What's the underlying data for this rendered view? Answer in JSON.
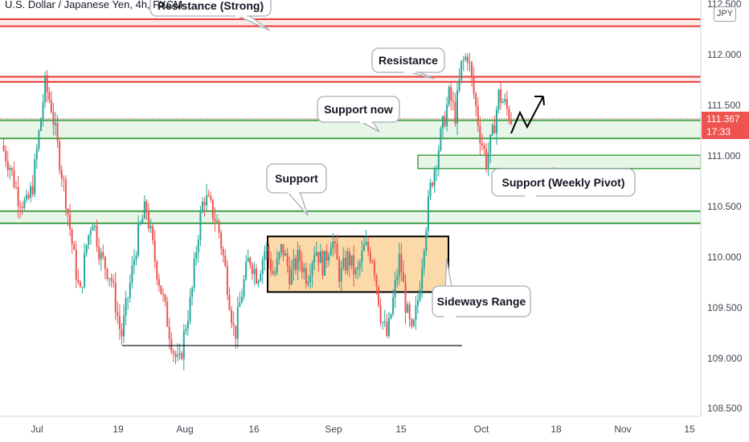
{
  "header": {
    "symbol_title": "U.S. Dollar / Japanese Yen, 4h, FXCM",
    "currency": "JPY"
  },
  "price_tag": {
    "price": "111.367",
    "countdown": "17:33"
  },
  "colors": {
    "up_candle": "#26a69a",
    "down_candle": "#ef5350",
    "resistance": "#e53935",
    "resistance_fill": "#fdecea",
    "support": "#43a047",
    "support_fill": "#e8f5e9",
    "range_fill": "#fcd9a9"
  },
  "chart_data": {
    "type": "candlestick",
    "xlabels": [
      "Jul",
      "19",
      "Aug",
      "16",
      "Sep",
      "15",
      "Oct",
      "18",
      "Nov",
      "15"
    ],
    "ylabels": [
      "112.500",
      "112.000",
      "111.500",
      "111.000",
      "110.500",
      "110.000",
      "109.500",
      "109.000",
      "108.500"
    ],
    "ylim": [
      108.4,
      112.6
    ],
    "price_path": [
      {
        "t": 0,
        "p": 111.1
      },
      {
        "t": 4,
        "p": 110.9
      },
      {
        "t": 8,
        "p": 110.6
      },
      {
        "t": 12,
        "p": 110.5
      },
      {
        "t": 15,
        "p": 110.7
      },
      {
        "t": 18,
        "p": 111.2
      },
      {
        "t": 21,
        "p": 111.7
      },
      {
        "t": 24,
        "p": 111.5
      },
      {
        "t": 27,
        "p": 111.1
      },
      {
        "t": 31,
        "p": 110.6
      },
      {
        "t": 35,
        "p": 110.0
      },
      {
        "t": 38,
        "p": 109.6
      },
      {
        "t": 41,
        "p": 110.1
      },
      {
        "t": 44,
        "p": 110.4
      },
      {
        "t": 48,
        "p": 110.0
      },
      {
        "t": 53,
        "p": 109.8
      },
      {
        "t": 58,
        "p": 109.2
      },
      {
        "t": 62,
        "p": 109.7
      },
      {
        "t": 66,
        "p": 110.2
      },
      {
        "t": 70,
        "p": 110.5
      },
      {
        "t": 74,
        "p": 110.0
      },
      {
        "t": 79,
        "p": 109.5
      },
      {
        "t": 83,
        "p": 109.1
      },
      {
        "t": 86,
        "p": 108.9
      },
      {
        "t": 89,
        "p": 109.3
      },
      {
        "t": 92,
        "p": 109.6
      },
      {
        "t": 95,
        "p": 110.2
      },
      {
        "t": 98,
        "p": 110.6
      },
      {
        "t": 101,
        "p": 110.5
      },
      {
        "t": 105,
        "p": 110.3
      },
      {
        "t": 109,
        "p": 109.8
      },
      {
        "t": 113,
        "p": 109.2
      },
      {
        "t": 116,
        "p": 109.6
      },
      {
        "t": 120,
        "p": 110.0
      },
      {
        "t": 124,
        "p": 109.8
      },
      {
        "t": 128,
        "p": 110.1
      },
      {
        "t": 132,
        "p": 109.8
      },
      {
        "t": 136,
        "p": 110.1
      },
      {
        "t": 140,
        "p": 109.8
      },
      {
        "t": 144,
        "p": 110.0
      },
      {
        "t": 148,
        "p": 109.8
      },
      {
        "t": 152,
        "p": 110.1
      },
      {
        "t": 156,
        "p": 109.9
      },
      {
        "t": 160,
        "p": 110.2
      },
      {
        "t": 164,
        "p": 109.8
      },
      {
        "t": 168,
        "p": 110.0
      },
      {
        "t": 172,
        "p": 109.8
      },
      {
        "t": 176,
        "p": 110.1
      },
      {
        "t": 180,
        "p": 110.0
      },
      {
        "t": 184,
        "p": 109.4
      },
      {
        "t": 187,
        "p": 109.2
      },
      {
        "t": 190,
        "p": 109.6
      },
      {
        "t": 193,
        "p": 110.0
      },
      {
        "t": 196,
        "p": 109.5
      },
      {
        "t": 199,
        "p": 109.2
      },
      {
        "t": 202,
        "p": 109.6
      },
      {
        "t": 205,
        "p": 110.2
      },
      {
        "t": 208,
        "p": 110.7
      },
      {
        "t": 211,
        "p": 111.0
      },
      {
        "t": 214,
        "p": 111.3
      },
      {
        "t": 217,
        "p": 111.6
      },
      {
        "t": 220,
        "p": 111.4
      },
      {
        "t": 223,
        "p": 111.9
      },
      {
        "t": 226,
        "p": 112.0
      },
      {
        "t": 229,
        "p": 111.6
      },
      {
        "t": 232,
        "p": 111.2
      },
      {
        "t": 235,
        "p": 110.95
      },
      {
        "t": 238,
        "p": 111.2
      },
      {
        "t": 241,
        "p": 111.6
      },
      {
        "t": 244,
        "p": 111.5
      },
      {
        "t": 247,
        "p": 111.37
      }
    ],
    "zones": [
      {
        "label": "Resistance (Strong)",
        "kind": "resistance",
        "y1": 112.35,
        "y2": 112.28
      },
      {
        "label": "Resistance",
        "kind": "resistance",
        "y1": 111.78,
        "y2": 111.73
      },
      {
        "label": "Support now",
        "kind": "support",
        "y1": 111.35,
        "y2": 111.17
      },
      {
        "label": "Support  (Weekly Pivot)",
        "kind": "support",
        "y1": 110.98,
        "y2": 110.92
      },
      {
        "label": "Support",
        "kind": "support",
        "y1": 110.45,
        "y2": 110.33
      },
      {
        "label": "Sideways Range",
        "kind": "range",
        "y1": 110.2,
        "y2": 109.65
      }
    ],
    "horizontal_line": {
      "y": 109.12
    }
  }
}
